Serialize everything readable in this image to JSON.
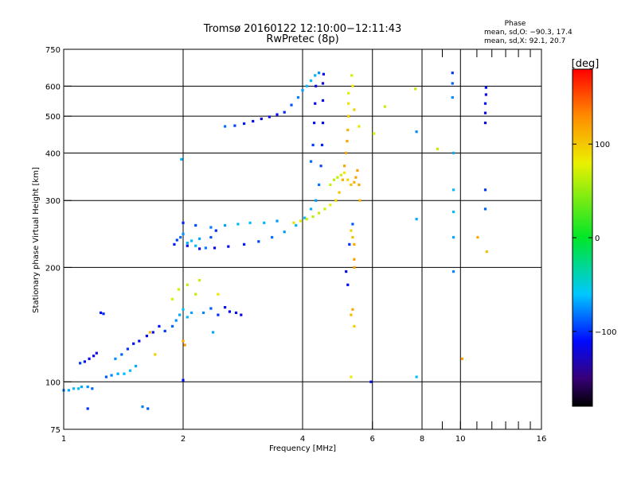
{
  "chart_data": {
    "type": "scatter",
    "title": "Tromsø 20160122 12:10:00−12:11:43",
    "subtitle": "RwPretec (8p)",
    "xlabel": "Frequency [MHz]",
    "ylabel": "Stationary phase Virtual Height [km]",
    "x_scale": "log",
    "y_scale": "log",
    "xlim": [
      1,
      16
    ],
    "ylim": [
      75,
      750
    ],
    "x_ticks": [
      1,
      2,
      4,
      6,
      8,
      10,
      16
    ],
    "x_tick_labels": [
      "1",
      "2",
      "4",
      "6",
      "8",
      "10",
      "16"
    ],
    "x_minor_ticks": [
      9,
      11,
      12,
      13,
      14,
      15
    ],
    "y_ticks": [
      75,
      100,
      200,
      300,
      400,
      500,
      600,
      750
    ],
    "y_tick_labels": [
      "75",
      "100",
      "200",
      "300",
      "400",
      "500",
      "600",
      "750"
    ],
    "grid_x": [
      2,
      4,
      6,
      8,
      10
    ],
    "grid_y": [
      100,
      200,
      300,
      400,
      500,
      600
    ],
    "phase_stats": {
      "title": "Phase",
      "line_o": "mean, sd,O: −90.3, 17.4",
      "line_x": "mean, sd,X:  92.1, 20.7"
    },
    "colorbar": {
      "label": "[deg]",
      "range": [
        -180,
        180
      ],
      "ticks": [
        -100,
        0,
        100
      ],
      "tick_labels": [
        "−100",
        "0",
        "100"
      ],
      "colormap": "rainbow"
    },
    "series": [
      {
        "mode": "O",
        "phase_mean": -90.3,
        "points": [
          [
            1.0,
            95
          ],
          [
            1.03,
            95
          ],
          [
            1.06,
            96
          ],
          [
            1.09,
            96
          ],
          [
            1.11,
            97
          ],
          [
            1.15,
            97
          ],
          [
            1.18,
            96
          ],
          [
            1.1,
            112
          ],
          [
            1.13,
            113
          ],
          [
            1.16,
            115
          ],
          [
            1.19,
            117
          ],
          [
            1.21,
            119
          ],
          [
            1.24,
            152
          ],
          [
            1.26,
            151
          ],
          [
            1.28,
            103
          ],
          [
            1.32,
            104
          ],
          [
            1.37,
            105
          ],
          [
            1.42,
            105
          ],
          [
            1.47,
            107
          ],
          [
            1.52,
            110
          ],
          [
            1.35,
            115
          ],
          [
            1.4,
            118
          ],
          [
            1.45,
            122
          ],
          [
            1.5,
            126
          ],
          [
            1.55,
            128
          ],
          [
            1.62,
            132
          ],
          [
            1.68,
            135
          ],
          [
            1.74,
            140
          ],
          [
            1.8,
            136
          ],
          [
            1.88,
            140
          ],
          [
            1.92,
            145
          ],
          [
            1.96,
            150
          ],
          [
            2.0,
            155
          ],
          [
            2.05,
            148
          ],
          [
            2.1,
            152
          ],
          [
            2.25,
            152
          ],
          [
            2.35,
            156
          ],
          [
            2.45,
            150
          ],
          [
            2.55,
            157
          ],
          [
            2.62,
            153
          ],
          [
            2.72,
            152
          ],
          [
            2.8,
            150
          ],
          [
            1.9,
            230
          ],
          [
            1.93,
            236
          ],
          [
            1.97,
            240
          ],
          [
            2.0,
            245
          ],
          [
            2.05,
            232
          ],
          [
            2.1,
            235
          ],
          [
            2.15,
            228
          ],
          [
            2.2,
            238
          ],
          [
            2.28,
            225
          ],
          [
            2.35,
            240
          ],
          [
            2.42,
            250
          ],
          [
            2.05,
            228
          ],
          [
            2.2,
            224
          ],
          [
            2.4,
            225
          ],
          [
            2.6,
            227
          ],
          [
            2.85,
            230
          ],
          [
            3.1,
            234
          ],
          [
            3.35,
            240
          ],
          [
            3.6,
            248
          ],
          [
            3.85,
            258
          ],
          [
            4.05,
            270
          ],
          [
            4.2,
            285
          ],
          [
            4.32,
            300
          ],
          [
            4.4,
            330
          ],
          [
            4.45,
            370
          ],
          [
            4.48,
            420
          ],
          [
            4.5,
            480
          ],
          [
            4.5,
            550
          ],
          [
            4.5,
            610
          ],
          [
            4.52,
            645
          ],
          [
            2.0,
            262
          ],
          [
            2.15,
            258
          ],
          [
            2.35,
            255
          ],
          [
            2.55,
            258
          ],
          [
            2.75,
            260
          ],
          [
            2.95,
            262
          ],
          [
            3.2,
            262
          ],
          [
            3.45,
            265
          ],
          [
            2.55,
            470
          ],
          [
            2.7,
            472
          ],
          [
            2.85,
            478
          ],
          [
            3.0,
            485
          ],
          [
            3.15,
            492
          ],
          [
            3.3,
            498
          ],
          [
            3.45,
            505
          ],
          [
            3.6,
            512
          ],
          [
            3.75,
            535
          ],
          [
            3.9,
            560
          ],
          [
            4.0,
            585
          ],
          [
            4.1,
            600
          ],
          [
            4.2,
            620
          ],
          [
            4.3,
            640
          ],
          [
            4.4,
            650
          ],
          [
            4.2,
            380
          ],
          [
            4.25,
            420
          ],
          [
            4.28,
            480
          ],
          [
            4.3,
            540
          ],
          [
            4.32,
            600
          ],
          [
            5.15,
            195
          ],
          [
            5.2,
            180
          ],
          [
            5.25,
            230
          ],
          [
            5.35,
            260
          ],
          [
            9.6,
            195
          ],
          [
            9.6,
            240
          ],
          [
            9.6,
            280
          ],
          [
            9.6,
            320
          ],
          [
            9.6,
            400
          ],
          [
            9.55,
            560
          ],
          [
            9.55,
            610
          ],
          [
            9.55,
            650
          ],
          [
            11.55,
            540
          ],
          [
            11.55,
            510
          ],
          [
            11.55,
            480
          ],
          [
            11.6,
            570
          ],
          [
            11.6,
            595
          ],
          [
            11.55,
            320
          ],
          [
            11.55,
            285
          ],
          [
            7.75,
            455
          ],
          [
            7.75,
            268
          ],
          [
            7.75,
            103
          ],
          [
            1.98,
            385
          ],
          [
            2.38,
            135
          ],
          [
            1.58,
            86
          ],
          [
            1.63,
            85
          ],
          [
            1.15,
            85
          ],
          [
            2.0,
            101
          ],
          [
            5.95,
            100
          ]
        ]
      },
      {
        "mode": "X",
        "phase_mean": 92.1,
        "points": [
          [
            3.8,
            262
          ],
          [
            3.95,
            265
          ],
          [
            4.1,
            268
          ],
          [
            4.25,
            272
          ],
          [
            4.4,
            278
          ],
          [
            4.55,
            285
          ],
          [
            4.7,
            292
          ],
          [
            4.85,
            300
          ],
          [
            4.95,
            315
          ],
          [
            5.05,
            340
          ],
          [
            5.1,
            370
          ],
          [
            5.15,
            400
          ],
          [
            5.18,
            430
          ],
          [
            5.2,
            460
          ],
          [
            5.22,
            500
          ],
          [
            5.22,
            540
          ],
          [
            5.22,
            575
          ],
          [
            4.7,
            330
          ],
          [
            4.8,
            340
          ],
          [
            4.9,
            345
          ],
          [
            5.0,
            350
          ],
          [
            5.1,
            355
          ],
          [
            5.2,
            340
          ],
          [
            5.3,
            330
          ],
          [
            5.4,
            335
          ],
          [
            5.45,
            345
          ],
          [
            5.5,
            360
          ],
          [
            5.55,
            330
          ],
          [
            5.58,
            300
          ],
          [
            5.4,
            520
          ],
          [
            5.55,
            470
          ],
          [
            6.05,
            450
          ],
          [
            6.45,
            530
          ],
          [
            7.7,
            590
          ],
          [
            8.75,
            410
          ],
          [
            5.32,
            640
          ],
          [
            5.35,
            600
          ],
          [
            5.3,
            250
          ],
          [
            5.35,
            240
          ],
          [
            5.4,
            230
          ],
          [
            5.4,
            210
          ],
          [
            5.4,
            200
          ],
          [
            5.35,
            155
          ],
          [
            5.3,
            150
          ],
          [
            5.4,
            140
          ],
          [
            5.3,
            103
          ],
          [
            1.95,
            175
          ],
          [
            2.05,
            180
          ],
          [
            2.15,
            170
          ],
          [
            2.2,
            185
          ],
          [
            1.88,
            165
          ],
          [
            2.45,
            170
          ],
          [
            1.7,
            118
          ],
          [
            1.65,
            135
          ],
          [
            2.0,
            128
          ],
          [
            2.02,
            125
          ],
          [
            10.1,
            115
          ],
          [
            11.05,
            240
          ],
          [
            11.65,
            220
          ]
        ]
      }
    ]
  }
}
